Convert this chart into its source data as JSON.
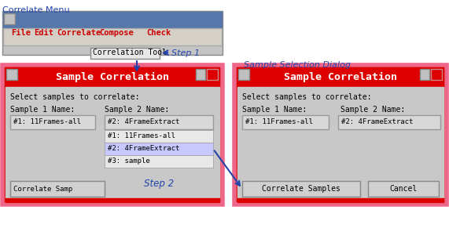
{
  "title": "Correlate Menu",
  "bg_color": "#ffffff",
  "menu_border_color": "#6688aa",
  "menu_titlebar_color": "#5577aa",
  "menu_strip_color": "#d4d0c8",
  "menu_items": [
    "File",
    "Edit",
    "Correlate",
    "Compose",
    "Check"
  ],
  "menu_item_color": "#cc0000",
  "menu_item_x": [
    14,
    43,
    72,
    126,
    186
  ],
  "dialog_title": "Sample Correlation",
  "dialog_red": "#dd0000",
  "dialog_pink_border": "#ee6688",
  "dialog_body_bg": "#c8c8c8",
  "dialog_title_color": "#ffffff",
  "label_select": "Select samples to correlate:",
  "label_s1": "Sample 1 Name:",
  "label_s2": "Sample 2 Name:",
  "field1_text": "#1: 11Frames-all",
  "field2_text": "#2: 4FrameExtract",
  "dropdown_items": [
    "#1: 11Frames-all",
    "#2: 4FrameExtract",
    "#3: sample"
  ],
  "dropdown_highlight_idx": 1,
  "btn_correlate": "Correlate Samples",
  "btn_cancel": "Cancel",
  "btn_correlate_short": "Correlate Samp",
  "step1_label": "Step 1",
  "step2_label": "Step 2",
  "tooltip_label": "Correlation Tool",
  "sample_dialog_label": "Sample Selection Dialog",
  "annotation_color": "#2244aa",
  "field_bg": "#d8d8d8",
  "field_border": "#999999",
  "btn_bg": "#d0d0d0",
  "btn_border": "#888888",
  "dropdown_bg": "#e8e8e8",
  "dropdown_highlight_bg": "#c8c8ff"
}
